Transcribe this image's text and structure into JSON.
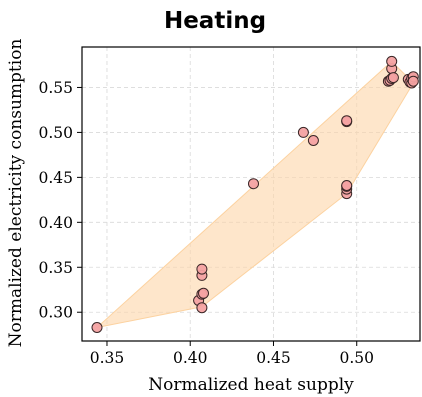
{
  "chart_data": {
    "type": "scatter",
    "title": "Heating",
    "xlabel": "Normalized heat supply",
    "ylabel": "Normalized electricity consumption",
    "xlim": [
      0.335,
      0.538
    ],
    "ylim": [
      0.268,
      0.595
    ],
    "xticks": [
      0.35,
      0.4,
      0.45,
      0.5
    ],
    "xtick_labels": [
      "0.35",
      "0.40",
      "0.45",
      "0.50"
    ],
    "yticks": [
      0.3,
      0.35,
      0.4,
      0.45,
      0.5,
      0.55
    ],
    "ytick_labels": [
      "0.30",
      "0.35",
      "0.40",
      "0.45",
      "0.50",
      "0.55"
    ],
    "grid": true,
    "colors": {
      "point_fill": "#f4a2a2",
      "point_edge": "#3a2626",
      "hull_fill": "#fdd5a8"
    },
    "hull": [
      [
        0.344,
        0.283
      ],
      [
        0.407,
        0.306
      ],
      [
        0.494,
        0.432
      ],
      [
        0.534,
        0.555
      ],
      [
        0.521,
        0.579
      ],
      [
        0.344,
        0.283
      ]
    ],
    "points": [
      {
        "x": 0.344,
        "y": 0.283
      },
      {
        "x": 0.405,
        "y": 0.313
      },
      {
        "x": 0.407,
        "y": 0.305
      },
      {
        "x": 0.407,
        "y": 0.32
      },
      {
        "x": 0.408,
        "y": 0.321
      },
      {
        "x": 0.407,
        "y": 0.341
      },
      {
        "x": 0.407,
        "y": 0.348
      },
      {
        "x": 0.438,
        "y": 0.443
      },
      {
        "x": 0.468,
        "y": 0.5
      },
      {
        "x": 0.474,
        "y": 0.491
      },
      {
        "x": 0.494,
        "y": 0.432
      },
      {
        "x": 0.494,
        "y": 0.437
      },
      {
        "x": 0.494,
        "y": 0.44
      },
      {
        "x": 0.494,
        "y": 0.441
      },
      {
        "x": 0.494,
        "y": 0.512
      },
      {
        "x": 0.494,
        "y": 0.513
      },
      {
        "x": 0.519,
        "y": 0.557
      },
      {
        "x": 0.52,
        "y": 0.558
      },
      {
        "x": 0.521,
        "y": 0.56
      },
      {
        "x": 0.521,
        "y": 0.571
      },
      {
        "x": 0.521,
        "y": 0.579
      },
      {
        "x": 0.522,
        "y": 0.561
      },
      {
        "x": 0.531,
        "y": 0.559
      },
      {
        "x": 0.532,
        "y": 0.556
      },
      {
        "x": 0.533,
        "y": 0.555
      },
      {
        "x": 0.533,
        "y": 0.56
      },
      {
        "x": 0.534,
        "y": 0.562
      },
      {
        "x": 0.534,
        "y": 0.557
      }
    ]
  }
}
